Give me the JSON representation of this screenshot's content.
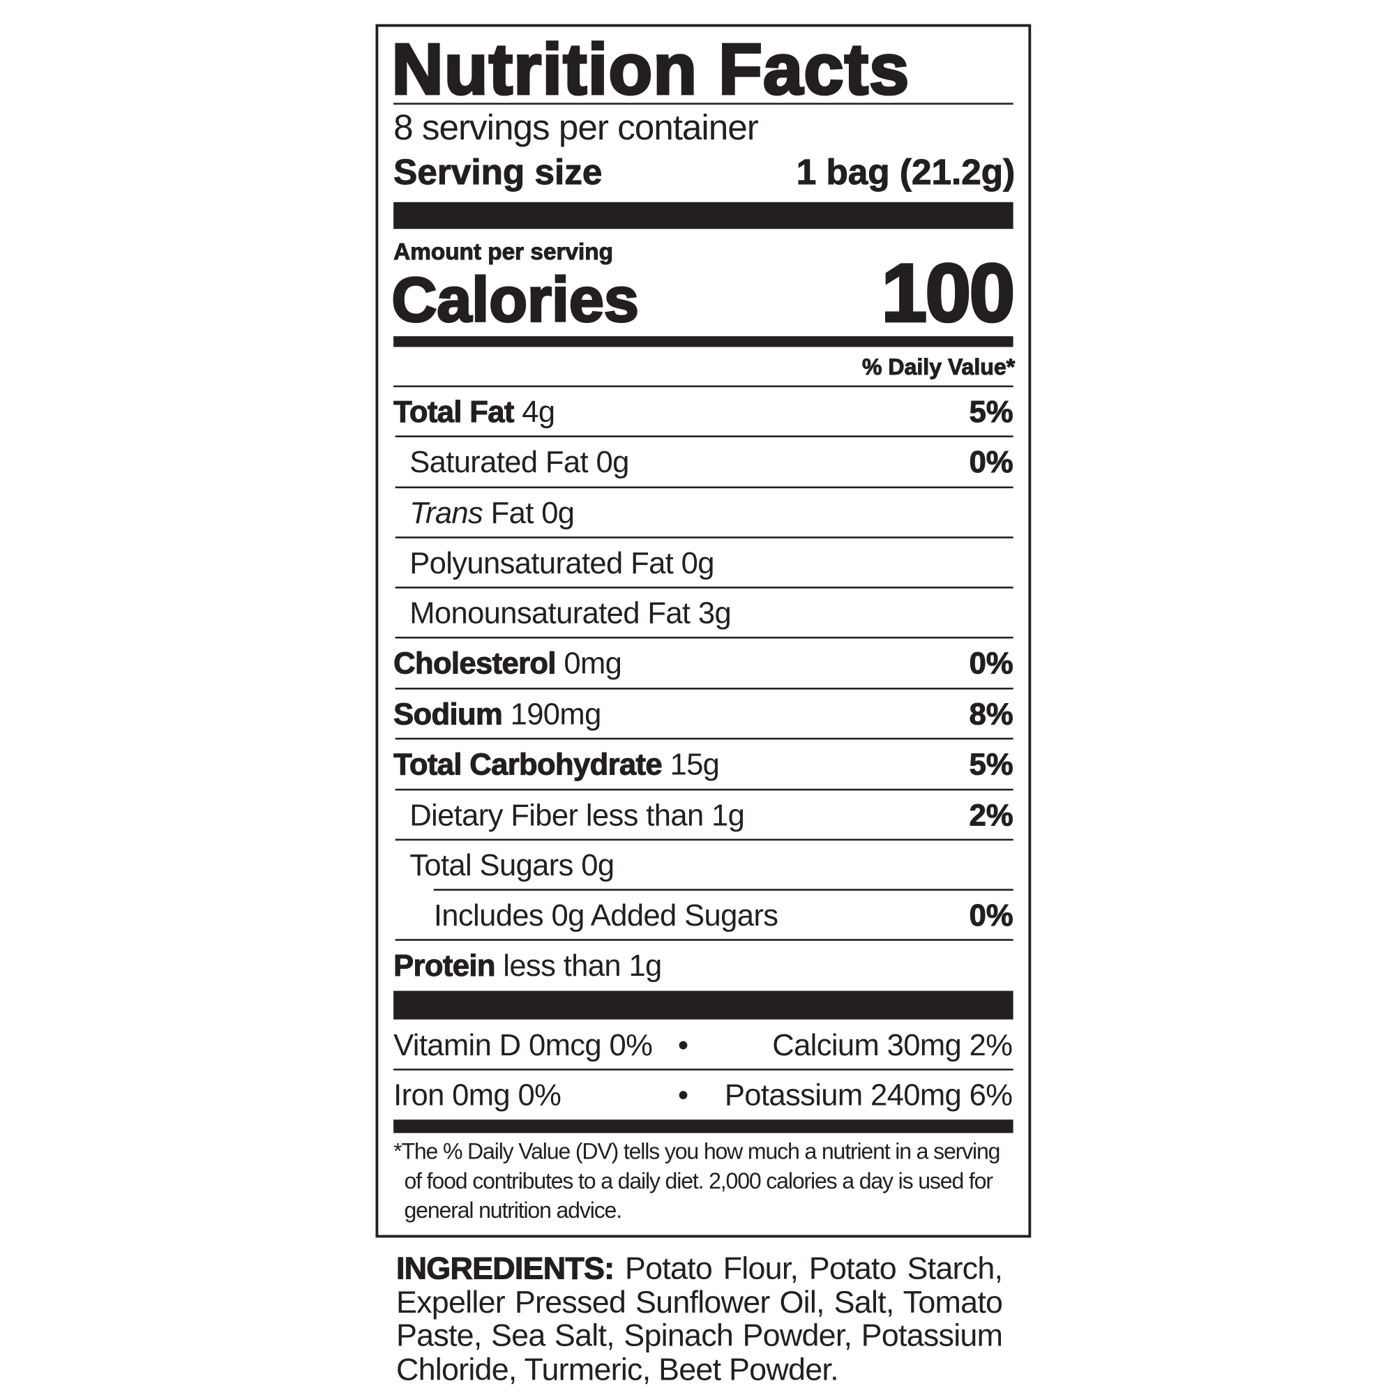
{
  "title": "Nutrition Facts",
  "servings_per_container": "8 servings per container",
  "serving_size": {
    "label": "Serving size",
    "value": "1 bag (21.2g)"
  },
  "amount_per_serving": "Amount per serving",
  "calories": {
    "label": "Calories",
    "value": "100"
  },
  "daily_value_header": "% Daily Value*",
  "nutrients": [
    {
      "name": "Total Fat",
      "amount": "4g",
      "dv": "5%"
    },
    {
      "name": "Saturated Fat",
      "amount": "0g",
      "dv": "0%"
    },
    {
      "name": "Trans",
      "name_rest": "Fat 0g",
      "dv": ""
    },
    {
      "name": "Polyunsaturated Fat",
      "amount": "0g",
      "dv": ""
    },
    {
      "name": "Monounsaturated Fat",
      "amount": "3g",
      "dv": ""
    },
    {
      "name": "Cholesterol",
      "amount": "0mg",
      "dv": "0%"
    },
    {
      "name": "Sodium",
      "amount": "190mg",
      "dv": "8%"
    },
    {
      "name": "Total Carbohydrate",
      "amount": "15g",
      "dv": "5%"
    },
    {
      "name": "Dietary Fiber",
      "amount": "less than 1g",
      "dv": "2%"
    },
    {
      "name": "Total Sugars",
      "amount": "0g",
      "dv": ""
    },
    {
      "name": "Includes 0g Added Sugars",
      "amount": "",
      "dv": "0%"
    },
    {
      "name": "Protein",
      "amount": "less than 1g",
      "dv": ""
    }
  ],
  "vitamins": {
    "vitamin_d": "Vitamin D 0mcg 0%",
    "calcium": "Calcium 30mg 2%",
    "iron": "Iron 0mg 0%",
    "potassium": "Potassium 240mg 6%",
    "bullet": "•"
  },
  "footnote": {
    "line1": "*The % Daily Value (DV) tells you how much a nutrient in a serving",
    "line2": "of food contributes to a daily diet. 2,000 calories a day is used for",
    "line3": "general nutrition advice."
  },
  "ingredients": {
    "label": "INGREDIENTS:",
    "text": "Potato Flour, Potato Starch, Expeller Pressed Sunflower Oil, Salt, Tomato Paste, Sea Salt, Spinach Powder, Potassium Chloride, Turmeric, Beet Powder."
  }
}
